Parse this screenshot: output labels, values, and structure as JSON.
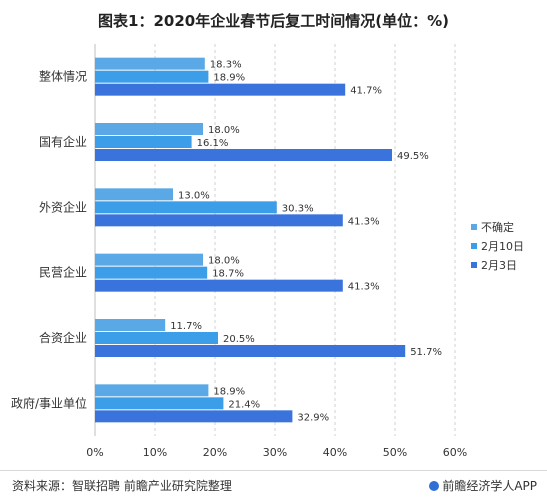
{
  "title": "图表1：2020年企业春节后复工时间情况(单位：%)",
  "source": "资料来源：智联招聘 前瞻产业研究院整理",
  "brand": "前瞻经济学人APP",
  "chart_data": {
    "type": "bar",
    "orientation": "horizontal",
    "categories": [
      "整体情况",
      "国有企业",
      "外资企业",
      "民营企业",
      "合资企业",
      "政府/事业单位"
    ],
    "series": [
      {
        "name": "不确定",
        "color": "#5aa9e6",
        "values": [
          18.3,
          18.0,
          13.0,
          18.0,
          11.7,
          18.9
        ]
      },
      {
        "name": "2月10日",
        "color": "#3c9de8",
        "values": [
          18.9,
          16.1,
          30.3,
          18.7,
          20.5,
          21.4
        ]
      },
      {
        "name": "2月3日",
        "color": "#3a73dc",
        "values": [
          41.7,
          49.5,
          41.3,
          41.3,
          51.7,
          32.9
        ]
      }
    ],
    "xlim": [
      0,
      60
    ],
    "xticks": [
      "0%",
      "10%",
      "20%",
      "30%",
      "40%",
      "50%",
      "60%"
    ],
    "value_suffix": "%",
    "grid": "vertical dashed",
    "legend_position": "right"
  }
}
